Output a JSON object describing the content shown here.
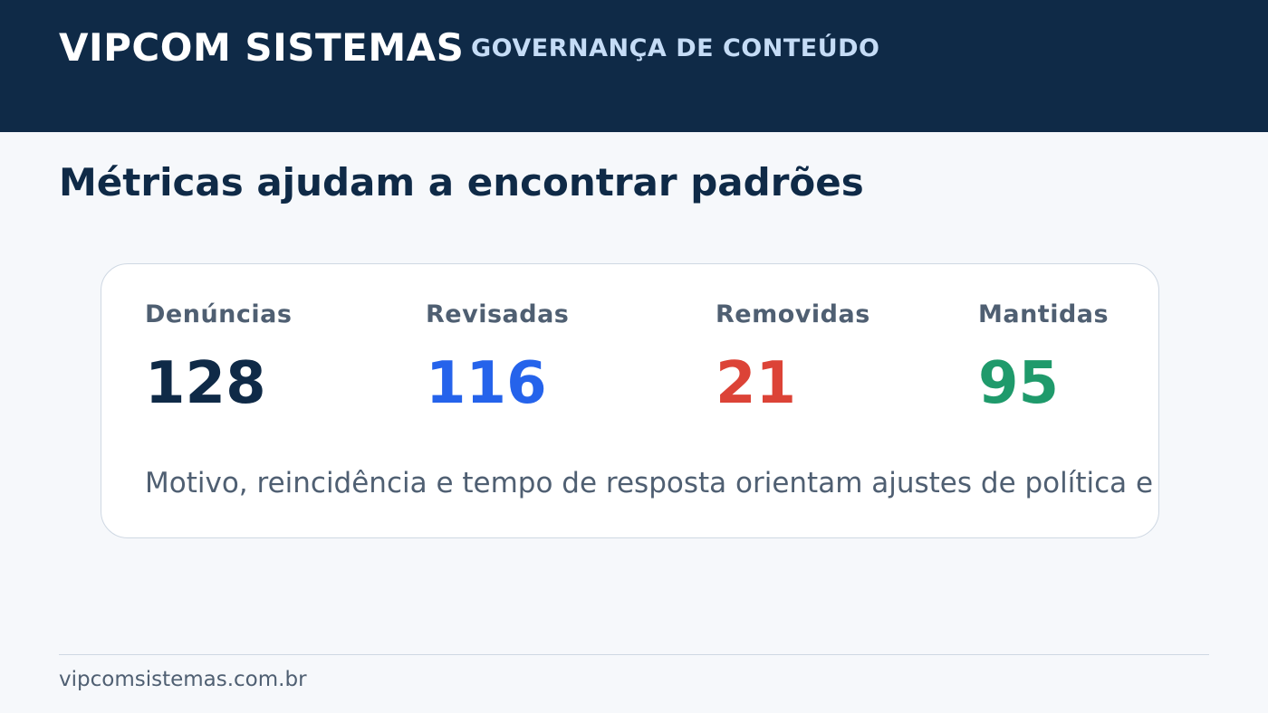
{
  "header": {
    "brand": "VIPCOM SISTEMAS",
    "section": "GOVERNANÇA DE CONTEÚDO"
  },
  "main": {
    "title": "Métricas ajudam a encontrar padrões",
    "metrics": [
      {
        "label": "Denúncias",
        "value": "128",
        "color": "#0f2a47"
      },
      {
        "label": "Revisadas",
        "value": "116",
        "color": "#2563eb"
      },
      {
        "label": "Removidas",
        "value": "21",
        "color": "#dc4337"
      },
      {
        "label": "Mantidas",
        "value": "95",
        "color": "#1f9a6b"
      }
    ],
    "note": "Motivo, reincidência e tempo de resposta orientam ajustes de política e operação."
  },
  "footer": {
    "url": "vipcomsistemas.com.br"
  }
}
